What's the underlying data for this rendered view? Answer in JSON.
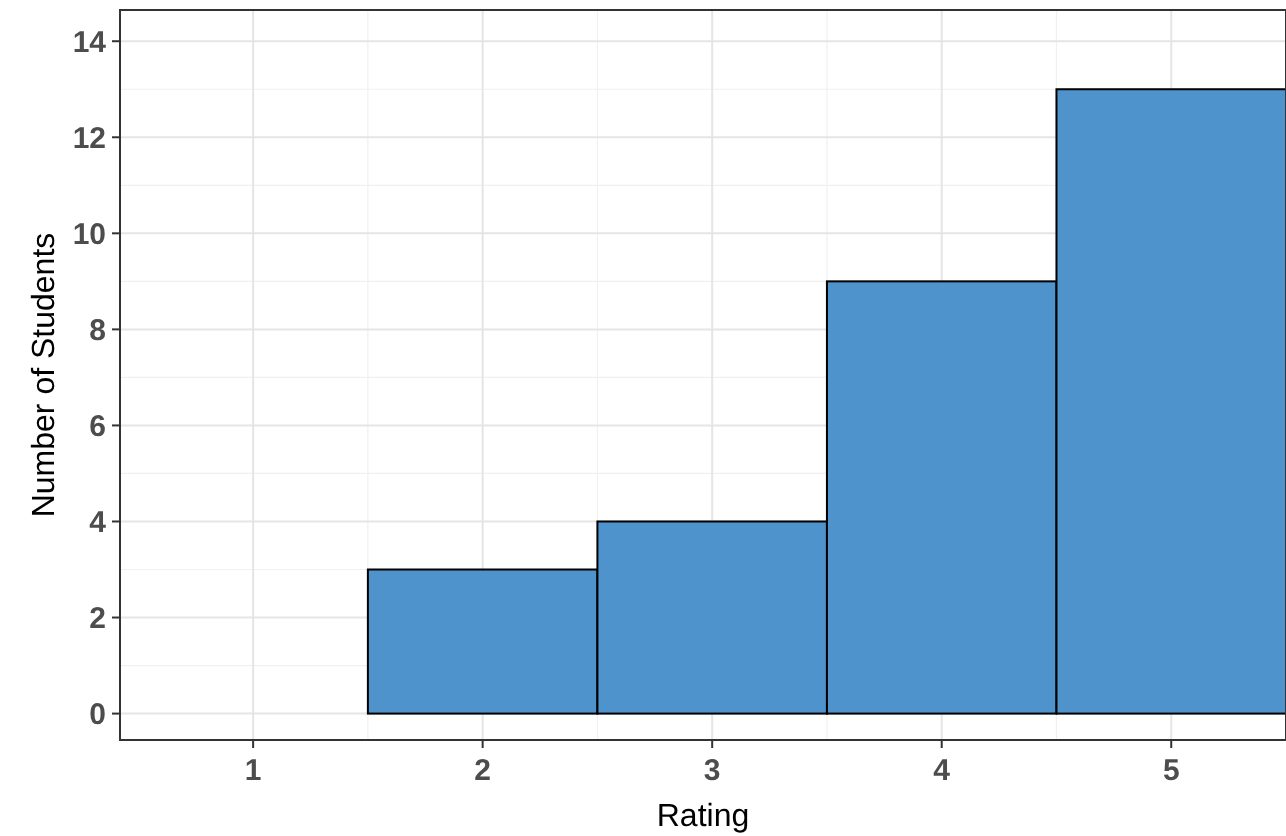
{
  "chart_data": {
    "type": "histogram",
    "xlabel": "Rating",
    "ylabel": "Number of Students",
    "bins": [
      0.5,
      1.5,
      2.5,
      3.5,
      4.5,
      5.5
    ],
    "values": [
      0,
      3,
      4,
      9,
      13
    ],
    "color": "#4f93cd",
    "xlim": [
      0.42,
      5.5
    ],
    "xticks": [
      1,
      2,
      3,
      4,
      5
    ],
    "ylim": [
      -0.55,
      14.65
    ],
    "yticks": [
      0,
      2,
      4,
      6,
      8,
      10,
      12,
      14
    ],
    "grid": true
  }
}
